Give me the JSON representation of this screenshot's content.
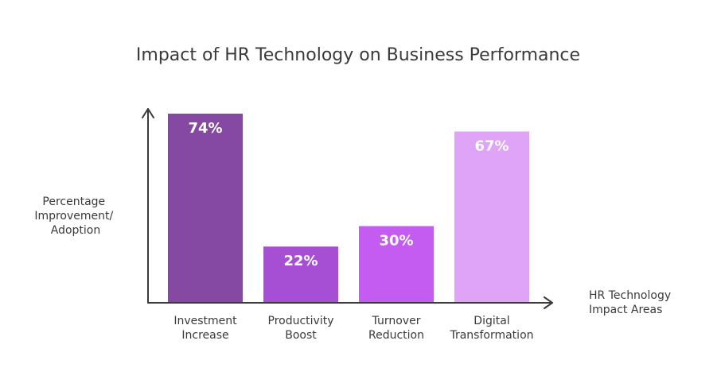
{
  "chart_data": {
    "type": "bar",
    "title": "Impact of HR Technology on Business Performance",
    "ylabel": [
      "Percentage",
      "Improvement/",
      "Adoption"
    ],
    "xlabel": [
      "HR Technology",
      "Impact Areas"
    ],
    "categories": [
      [
        "Investment",
        "Increase"
      ],
      [
        "Productivity",
        "Boost"
      ],
      [
        "Turnover",
        "Reduction"
      ],
      [
        "Digital",
        "Transformation"
      ]
    ],
    "values": [
      74,
      22,
      30,
      67
    ],
    "value_labels": [
      "74%",
      "22%",
      "30%",
      "67%"
    ],
    "colors": [
      "#8549a4",
      "#a64fd4",
      "#c45cf2",
      "#dfa3f8"
    ],
    "ylim": [
      0,
      74
    ],
    "grid": false,
    "legend": "none"
  }
}
